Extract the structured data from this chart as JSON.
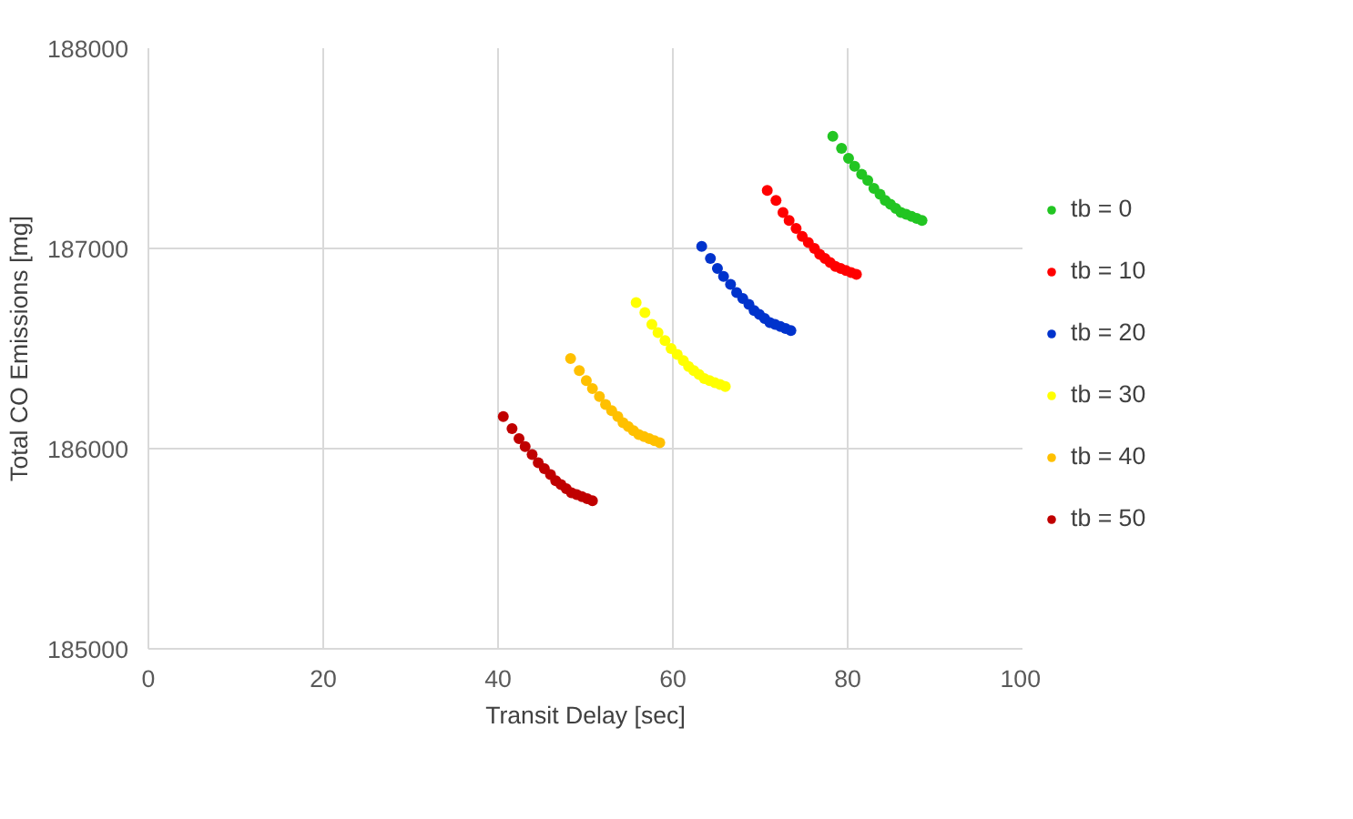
{
  "chart_data": {
    "type": "scatter",
    "xlabel": "Transit Delay [sec]",
    "ylabel": "Total CO Emissions [mg]",
    "xlim": [
      0,
      100
    ],
    "xticks": [
      0,
      20,
      40,
      60,
      80,
      100
    ],
    "ylim": [
      185000,
      188000
    ],
    "yticks": [
      185000,
      186000,
      187000,
      188000
    ],
    "grid": true,
    "legend": "right",
    "marker": "circle",
    "series": [
      {
        "name": "tb = 0",
        "color": "#22c522",
        "x": [
          78.3,
          79.3,
          80.1,
          80.8,
          81.6,
          82.3,
          83.0,
          83.7,
          84.3,
          84.9,
          85.5,
          86.1,
          86.7,
          87.3,
          87.9,
          88.5
        ],
        "values": [
          187560,
          187500,
          187450,
          187410,
          187370,
          187340,
          187300,
          187270,
          187240,
          187220,
          187200,
          187180,
          187170,
          187160,
          187150,
          187140
        ]
      },
      {
        "name": "tb = 10",
        "color": "#ff0000",
        "x": [
          70.8,
          71.8,
          72.6,
          73.3,
          74.1,
          74.8,
          75.5,
          76.2,
          76.8,
          77.4,
          78.0,
          78.6,
          79.2,
          79.8,
          80.4,
          81.0
        ],
        "values": [
          187290,
          187240,
          187180,
          187140,
          187100,
          187060,
          187030,
          187000,
          186970,
          186950,
          186930,
          186910,
          186900,
          186890,
          186880,
          186870
        ]
      },
      {
        "name": "tb = 20",
        "color": "#0033cc",
        "x": [
          63.3,
          64.3,
          65.1,
          65.8,
          66.6,
          67.3,
          68.0,
          68.7,
          69.3,
          69.9,
          70.5,
          71.1,
          71.7,
          72.3,
          72.9,
          73.5
        ],
        "values": [
          187010,
          186950,
          186900,
          186860,
          186820,
          186780,
          186750,
          186720,
          186690,
          186670,
          186650,
          186630,
          186620,
          186610,
          186600,
          186590
        ]
      },
      {
        "name": "tb = 30",
        "color": "#ffff00",
        "x": [
          55.8,
          56.8,
          57.6,
          58.3,
          59.1,
          59.8,
          60.5,
          61.2,
          61.8,
          62.4,
          63.0,
          63.6,
          64.2,
          64.8,
          65.4,
          66.0
        ],
        "values": [
          186730,
          186680,
          186620,
          186580,
          186540,
          186500,
          186470,
          186440,
          186410,
          186390,
          186370,
          186350,
          186340,
          186330,
          186320,
          186310
        ]
      },
      {
        "name": "tb = 40",
        "color": "#ffc000",
        "x": [
          48.3,
          49.3,
          50.1,
          50.8,
          51.6,
          52.3,
          53.0,
          53.7,
          54.3,
          54.9,
          55.5,
          56.1,
          56.7,
          57.3,
          57.9,
          58.5
        ],
        "values": [
          186450,
          186390,
          186340,
          186300,
          186260,
          186220,
          186190,
          186160,
          186130,
          186110,
          186090,
          186070,
          186060,
          186050,
          186040,
          186030
        ]
      },
      {
        "name": "tb = 50",
        "color": "#c00000",
        "x": [
          40.6,
          41.6,
          42.4,
          43.1,
          43.9,
          44.6,
          45.3,
          46.0,
          46.6,
          47.2,
          47.8,
          48.4,
          49.0,
          49.6,
          50.2,
          50.8
        ],
        "values": [
          186160,
          186100,
          186050,
          186010,
          185970,
          185930,
          185900,
          185870,
          185840,
          185820,
          185800,
          185780,
          185770,
          185760,
          185750,
          185740
        ]
      }
    ]
  }
}
